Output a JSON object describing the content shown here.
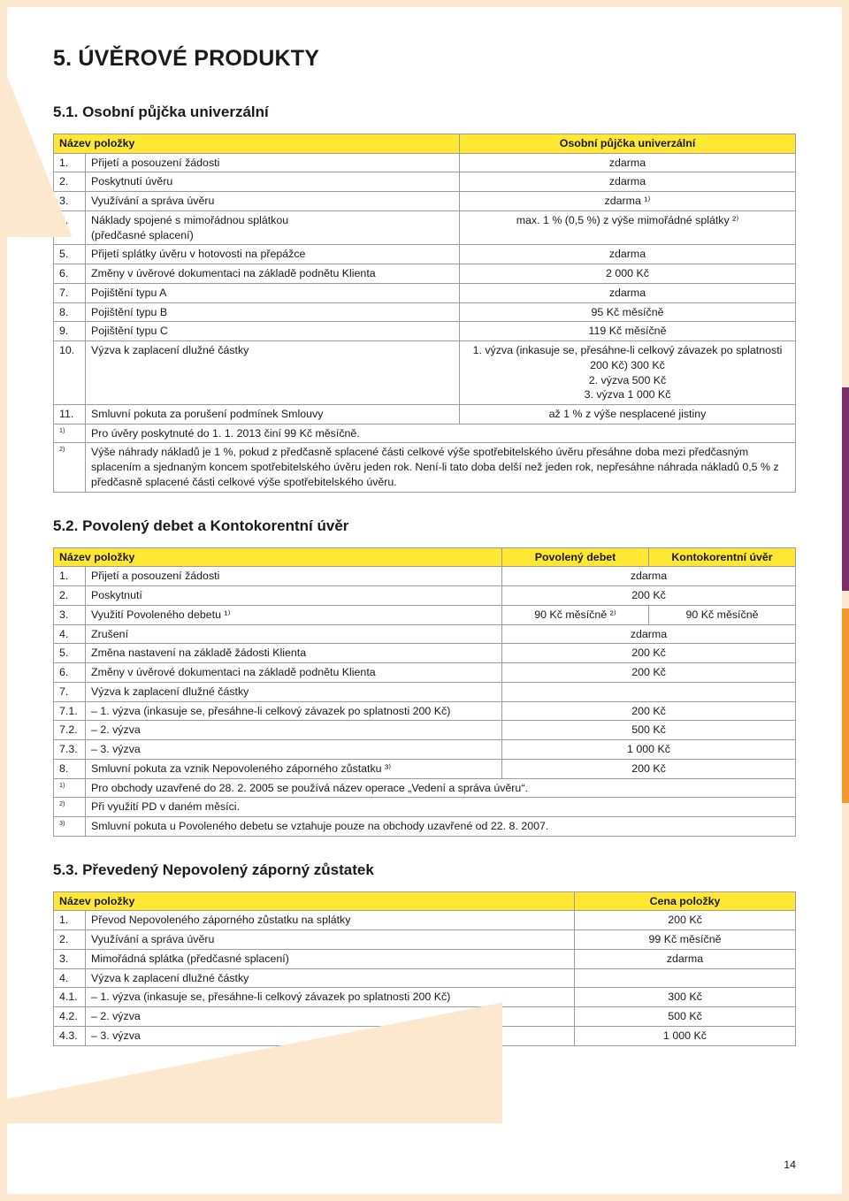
{
  "colors": {
    "page_bg": "#fce8cf",
    "sheet_bg": "#ffffff",
    "header_bg": "#ffe734",
    "border": "#9c9c9c",
    "text": "#1a1a1a",
    "edge_purple": "#7b2d6b",
    "edge_orange": "#f39a2e"
  },
  "typography": {
    "base_font": "Arial, Helvetica, sans-serif",
    "page_title_size_pt": 19,
    "section_title_size_pt": 12.5,
    "body_size_pt": 9.3
  },
  "page_number": "14",
  "page_title": "5. ÚVĚROVÉ PRODUKTY",
  "s51": {
    "title": "5.1. Osobní půjčka univerzální",
    "header_left": "Název položky",
    "header_right": "Osobní půjčka univerzální",
    "rows": [
      {
        "n": "1.",
        "label": "Přijetí a posouzení žádosti",
        "value": "zdarma"
      },
      {
        "n": "2.",
        "label": "Poskytnutí úvěru",
        "value": "zdarma"
      },
      {
        "n": "3.",
        "label": "Využívání a správa úvěru",
        "value": "zdarma ¹⁾"
      },
      {
        "n": "4.",
        "label": "Náklady spojené s mimořádnou splátkou\n(předčasné splacení)",
        "value": "max. 1 % (0,5 %) z výše mimořádné splátky ²⁾"
      },
      {
        "n": "5.",
        "label": "Přijetí splátky úvěru v hotovosti na přepážce",
        "value": "zdarma"
      },
      {
        "n": "6.",
        "label": "Změny v úvěrové dokumentaci na základě podnětu Klienta",
        "value": "2 000 Kč"
      },
      {
        "n": "7.",
        "label": "Pojištění typu A",
        "value": "zdarma"
      },
      {
        "n": "8.",
        "label": "Pojištění typu B",
        "value": "95 Kč měsíčně"
      },
      {
        "n": "9.",
        "label": "Pojištění typu C",
        "value": "119 Kč měsíčně"
      },
      {
        "n": "10.",
        "label": "Výzva k zaplacení dlužné částky",
        "value": "1. výzva (inkasuje se, přesáhne-li celkový  závazek po splatnosti 200 Kč) 300 Kč\n2. výzva 500 Kč\n3. výzva 1 000 Kč"
      },
      {
        "n": "11.",
        "label": "Smluvní pokuta za porušení podmínek Smlouvy",
        "value": "až 1 % z výše nesplacené jistiny"
      }
    ],
    "notes": [
      {
        "n": "1)",
        "text": "Pro úvěry poskytnuté do 1. 1. 2013 činí 99 Kč měsíčně."
      },
      {
        "n": "2)",
        "text": "Výše náhrady nákladů je 1 %, pokud z předčasně splacené části celkové výše spotřebitelského úvěru přesáhne doba mezi předčasným splacením a sjednaným koncem spotřebitelského úvěru jeden rok. Není-li tato doba delší než jeden rok, nepřesáhne náhrada nákladů 0,5 % z předčasně splacené části celkové výše spotřebitelského úvěru."
      }
    ]
  },
  "s52": {
    "title": "5.2. Povolený debet a Kontokorentní úvěr",
    "header_left": "Název položky",
    "header_mid": "Povolený debet",
    "header_right": "Kontokorentní úvěr",
    "rows": [
      {
        "n": "1.",
        "label": "Přijetí a posouzení žádosti",
        "value": "zdarma",
        "span": 2
      },
      {
        "n": "2.",
        "label": "Poskytnutí",
        "value": "200 Kč",
        "span": 2
      },
      {
        "n": "3.",
        "label": "Využití Povoleného debetu ¹⁾",
        "value_a": "90 Kč měsíčně ²⁾",
        "value_b": "90 Kč měsíčně"
      },
      {
        "n": "4.",
        "label": "Zrušení",
        "value": "zdarma",
        "span": 2
      },
      {
        "n": "5.",
        "label": "Změna nastavení na základě žádosti Klienta",
        "value": "200 Kč",
        "span": 2
      },
      {
        "n": "6.",
        "label": "Změny v úvěrové dokumentaci na základě podnětu Klienta",
        "value": "200 Kč",
        "span": 2
      },
      {
        "n": "7.",
        "label": "Výzva k zaplacení dlužné částky",
        "value": "",
        "span": 2
      },
      {
        "n": "7.1.",
        "label": "– 1. výzva (inkasuje se, přesáhne-li celkový závazek po splatnosti 200 Kč)",
        "value": "200 Kč",
        "span": 2
      },
      {
        "n": "7.2.",
        "label": "– 2. výzva",
        "value": "500 Kč",
        "span": 2
      },
      {
        "n": "7.3.",
        "label": "– 3. výzva",
        "value": "1 000 Kč",
        "span": 2
      },
      {
        "n": "8.",
        "label": "Smluvní pokuta za vznik Nepovoleného záporného zůstatku ³⁾",
        "value": "200 Kč",
        "span": 2
      }
    ],
    "notes": [
      {
        "n": "1)",
        "text": "Pro obchody uzavřené do 28. 2. 2005 se používá název operace „Vedení a správa úvěru“."
      },
      {
        "n": "2)",
        "text": "Při využití PD v daném měsíci."
      },
      {
        "n": "3)",
        "text": "Smluvní pokuta u Povoleného debetu se vztahuje pouze na obchody uzavřené od 22. 8. 2007."
      }
    ]
  },
  "s53": {
    "title": "5.3. Převedený Nepovolený záporný zůstatek",
    "header_left": "Název položky",
    "header_right": "Cena položky",
    "rows": [
      {
        "n": "1.",
        "label": "Převod Nepovoleného záporného zůstatku na splátky",
        "value": "200 Kč"
      },
      {
        "n": "2.",
        "label": "Využívání a správa úvěru",
        "value": "99 Kč měsíčně"
      },
      {
        "n": "3.",
        "label": "Mimořádná splátka (předčasné splacení)",
        "value": "zdarma"
      },
      {
        "n": "4.",
        "label": "Výzva k zaplacení dlužné částky",
        "value": ""
      },
      {
        "n": "4.1.",
        "label": "– 1. výzva (inkasuje se, přesáhne-li celkový závazek po splatnosti 200 Kč)",
        "value": "300 Kč"
      },
      {
        "n": "4.2.",
        "label": "– 2. výzva",
        "value": "500 Kč"
      },
      {
        "n": "4.3.",
        "label": "– 3. výzva",
        "value": "1 000 Kč"
      }
    ]
  }
}
